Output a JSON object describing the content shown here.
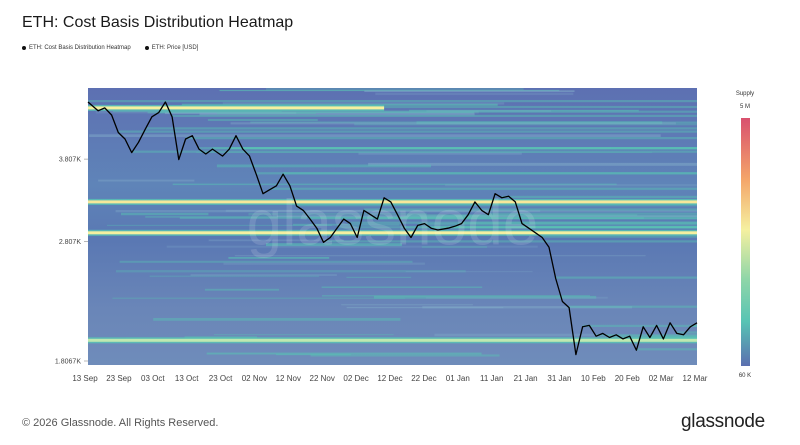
{
  "title": "ETH: Cost Basis Distribution Heatmap",
  "legend": [
    {
      "label": "ETH: Cost Basis Distribution Heatmap"
    },
    {
      "label": "ETH: Price [USD]"
    }
  ],
  "footer": "© 2026 Glassnode. All Rights Reserved.",
  "brand": "glassnode",
  "watermark": "glassnode",
  "colors": {
    "low": "#5b6fb0",
    "mid": "#58c4b4",
    "high": "#f5f0a0",
    "top": "#d9506e",
    "price_line": "#000000"
  },
  "chart_data": {
    "type": "heatmap",
    "title": "ETH: Cost Basis Distribution Heatmap",
    "y_scale": "log",
    "y_ticks": [
      "3.807K",
      "2.807K",
      "1.8067K"
    ],
    "y_tick_values": [
      3807,
      2807,
      1806.7
    ],
    "ylim": [
      1780,
      4950
    ],
    "x_ticks": [
      "13 Sep",
      "23 Sep",
      "03 Oct",
      "13 Oct",
      "23 Oct",
      "02 Nov",
      "12 Nov",
      "22 Nov",
      "02 Dec",
      "12 Dec",
      "22 Dec",
      "01 Jan",
      "11 Jan",
      "21 Jan",
      "31 Jan",
      "10 Feb",
      "20 Feb",
      "02 Mar",
      "12 Mar"
    ],
    "colorbar": {
      "title": "Supply",
      "max_label": "5 M",
      "min_label": "60 K"
    },
    "bands": [
      {
        "price": 4600,
        "start": "2025-09-13",
        "end": "2025-12-10",
        "level": 0.85
      },
      {
        "price": 3250,
        "start": "2025-09-13",
        "end": "2026-03-13",
        "level": 0.95
      },
      {
        "price": 2900,
        "start": "2025-09-13",
        "end": "2026-03-13",
        "level": 0.9
      },
      {
        "price": 1950,
        "start": "2025-09-13",
        "end": "2026-03-13",
        "level": 0.6
      }
    ],
    "series": [
      {
        "name": "ETH: Price [USD]",
        "points": [
          [
            "2025-09-13",
            4700
          ],
          [
            "2025-09-16",
            4550
          ],
          [
            "2025-09-18",
            4600
          ],
          [
            "2025-09-20",
            4480
          ],
          [
            "2025-09-22",
            4200
          ],
          [
            "2025-09-24",
            4100
          ],
          [
            "2025-09-26",
            3900
          ],
          [
            "2025-09-28",
            4050
          ],
          [
            "2025-09-30",
            4250
          ],
          [
            "2025-10-02",
            4450
          ],
          [
            "2025-10-04",
            4520
          ],
          [
            "2025-10-06",
            4700
          ],
          [
            "2025-10-08",
            4450
          ],
          [
            "2025-10-10",
            3800
          ],
          [
            "2025-10-12",
            4100
          ],
          [
            "2025-10-14",
            4150
          ],
          [
            "2025-10-16",
            3950
          ],
          [
            "2025-10-18",
            3880
          ],
          [
            "2025-10-20",
            3950
          ],
          [
            "2025-10-23",
            3850
          ],
          [
            "2025-10-25",
            3950
          ],
          [
            "2025-10-27",
            4150
          ],
          [
            "2025-10-29",
            3950
          ],
          [
            "2025-10-31",
            3850
          ],
          [
            "2025-11-02",
            3600
          ],
          [
            "2025-11-04",
            3350
          ],
          [
            "2025-11-06",
            3400
          ],
          [
            "2025-11-08",
            3450
          ],
          [
            "2025-11-10",
            3600
          ],
          [
            "2025-11-12",
            3450
          ],
          [
            "2025-11-14",
            3200
          ],
          [
            "2025-11-16",
            3150
          ],
          [
            "2025-11-18",
            3050
          ],
          [
            "2025-11-20",
            2950
          ],
          [
            "2025-11-22",
            2800
          ],
          [
            "2025-11-24",
            2850
          ],
          [
            "2025-11-26",
            2950
          ],
          [
            "2025-11-28",
            3050
          ],
          [
            "2025-11-30",
            3000
          ],
          [
            "2025-12-02",
            2850
          ],
          [
            "2025-12-04",
            3150
          ],
          [
            "2025-12-06",
            3100
          ],
          [
            "2025-12-08",
            3050
          ],
          [
            "2025-12-10",
            3300
          ],
          [
            "2025-12-12",
            3250
          ],
          [
            "2025-12-14",
            3100
          ],
          [
            "2025-12-16",
            2950
          ],
          [
            "2025-12-18",
            2850
          ],
          [
            "2025-12-20",
            2980
          ],
          [
            "2025-12-22",
            3000
          ],
          [
            "2025-12-24",
            2950
          ],
          [
            "2025-12-26",
            2930
          ],
          [
            "2025-12-29",
            2950
          ],
          [
            "2025-12-31",
            2970
          ],
          [
            "2026-01-02",
            3000
          ],
          [
            "2026-01-04",
            3100
          ],
          [
            "2026-01-06",
            3250
          ],
          [
            "2026-01-08",
            3150
          ],
          [
            "2026-01-10",
            3100
          ],
          [
            "2026-01-12",
            3350
          ],
          [
            "2026-01-14",
            3300
          ],
          [
            "2026-01-16",
            3320
          ],
          [
            "2026-01-18",
            3250
          ],
          [
            "2026-01-20",
            3000
          ],
          [
            "2026-01-22",
            2950
          ],
          [
            "2026-01-24",
            2900
          ],
          [
            "2026-01-26",
            2850
          ],
          [
            "2026-01-28",
            2750
          ],
          [
            "2026-01-30",
            2450
          ],
          [
            "2026-02-01",
            2250
          ],
          [
            "2026-02-03",
            2200
          ],
          [
            "2026-02-05",
            1850
          ],
          [
            "2026-02-07",
            2050
          ],
          [
            "2026-02-09",
            2060
          ],
          [
            "2026-02-11",
            1980
          ],
          [
            "2026-02-13",
            2000
          ],
          [
            "2026-02-15",
            1970
          ],
          [
            "2026-02-17",
            1990
          ],
          [
            "2026-02-19",
            1960
          ],
          [
            "2026-02-21",
            1980
          ],
          [
            "2026-02-23",
            1880
          ],
          [
            "2026-02-25",
            2050
          ],
          [
            "2026-02-27",
            1970
          ],
          [
            "2026-03-01",
            2060
          ],
          [
            "2026-03-03",
            1960
          ],
          [
            "2026-03-05",
            2080
          ],
          [
            "2026-03-07",
            2000
          ],
          [
            "2026-03-09",
            1990
          ],
          [
            "2026-03-11",
            2050
          ],
          [
            "2026-03-13",
            2080
          ]
        ]
      }
    ]
  }
}
